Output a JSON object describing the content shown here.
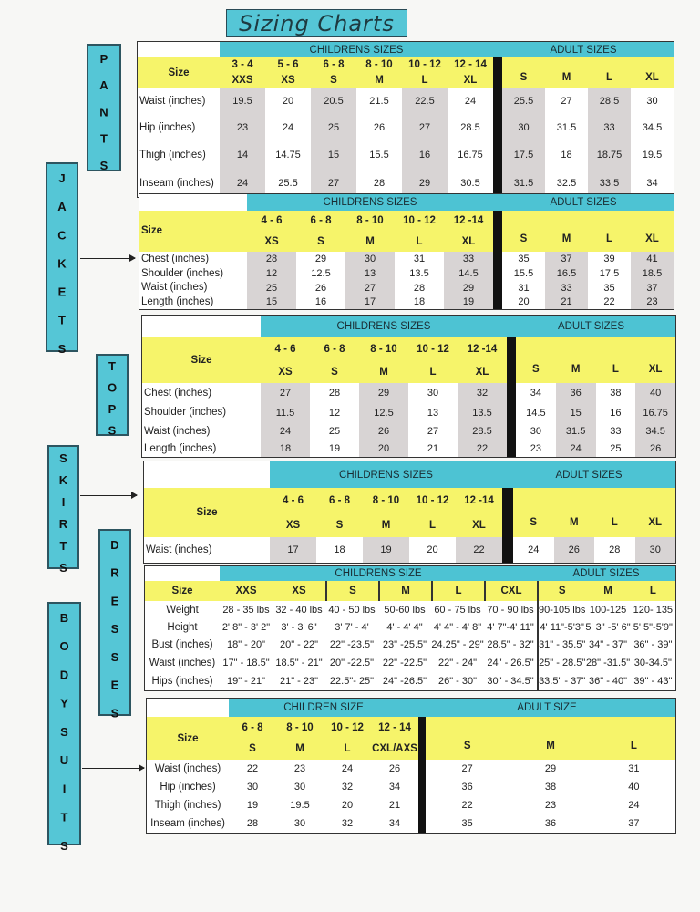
{
  "title": "Sizing Charts",
  "colors": {
    "teal": "#4dc3d3",
    "yellow": "#f6f46a",
    "shade": "#d8d4d4",
    "divider": "#111111"
  },
  "side_labels": {
    "pants": "PANTS",
    "jackets": "JACKETS",
    "tops": "TOPS",
    "skirts": "SKIRTS",
    "dresses": "DRESSES",
    "bodysuits": "BODYSUITS"
  },
  "tables": [
    {
      "id": "pants",
      "children_header": "CHILDRENS SIZES",
      "adult_header": "ADULT SIZES",
      "size_label": "Size",
      "child_cols": [
        {
          "range": "3 - 4",
          "size": "XXS"
        },
        {
          "range": "5 - 6",
          "size": "XS"
        },
        {
          "range": "6 - 8",
          "size": "S"
        },
        {
          "range": "8 - 10",
          "size": "M"
        },
        {
          "range": "10 - 12",
          "size": "L"
        },
        {
          "range": "12 - 14",
          "size": "XL"
        }
      ],
      "adult_cols": [
        {
          "size": "S"
        },
        {
          "size": "M"
        },
        {
          "size": "L"
        },
        {
          "size": "XL"
        }
      ],
      "rows": [
        {
          "label": "Waist (inches)",
          "child": [
            "19.5",
            "20",
            "20.5",
            "21.5",
            "22.5",
            "24"
          ],
          "adult": [
            "25.5",
            "27",
            "28.5",
            "30"
          ]
        },
        {
          "label": "Hip (inches)",
          "child": [
            "23",
            "24",
            "25",
            "26",
            "27",
            "28.5"
          ],
          "adult": [
            "30",
            "31.5",
            "33",
            "34.5"
          ]
        },
        {
          "label": "Thigh (inches)",
          "child": [
            "14",
            "14.75",
            "15",
            "15.5",
            "16",
            "16.75"
          ],
          "adult": [
            "17.5",
            "18",
            "18.75",
            "19.5"
          ]
        },
        {
          "label": "Inseam (inches)",
          "child": [
            "24",
            "25.5",
            "27",
            "28",
            "29",
            "30.5"
          ],
          "adult": [
            "31.5",
            "32.5",
            "33.5",
            "34"
          ]
        }
      ]
    },
    {
      "id": "jackets",
      "children_header": "CHILDRENS SIZES",
      "adult_header": "ADULT SIZES",
      "size_label": "Size",
      "child_cols": [
        {
          "range": "4 - 6",
          "size": "XS"
        },
        {
          "range": "6 - 8",
          "size": "S"
        },
        {
          "range": "8 - 10",
          "size": "M"
        },
        {
          "range": "10 - 12",
          "size": "L"
        },
        {
          "range": "12 -14",
          "size": "XL"
        }
      ],
      "adult_cols": [
        {
          "size": "S"
        },
        {
          "size": "M"
        },
        {
          "size": "L"
        },
        {
          "size": "XL"
        }
      ],
      "rows": [
        {
          "label": "Chest (inches)",
          "child": [
            "28",
            "29",
            "30",
            "31",
            "33"
          ],
          "adult": [
            "35",
            "37",
            "39",
            "41"
          ]
        },
        {
          "label": "Shoulder (inches)",
          "child": [
            "12",
            "12.5",
            "13",
            "13.5",
            "14.5"
          ],
          "adult": [
            "15.5",
            "16.5",
            "17.5",
            "18.5"
          ]
        },
        {
          "label": "Waist (inches)",
          "child": [
            "25",
            "26",
            "27",
            "28",
            "29"
          ],
          "adult": [
            "31",
            "33",
            "35",
            "37"
          ]
        },
        {
          "label": "Length (inches)",
          "child": [
            "15",
            "16",
            "17",
            "18",
            "19"
          ],
          "adult": [
            "20",
            "21",
            "22",
            "23"
          ]
        }
      ]
    },
    {
      "id": "tops",
      "children_header": "CHILDRENS SIZES",
      "adult_header": "ADULT SIZES",
      "size_label": "Size",
      "child_cols": [
        {
          "range": "4 - 6",
          "size": "XS"
        },
        {
          "range": "6 - 8",
          "size": "S"
        },
        {
          "range": "8 - 10",
          "size": "M"
        },
        {
          "range": "10 - 12",
          "size": "L"
        },
        {
          "range": "12 -14",
          "size": "XL"
        }
      ],
      "adult_cols": [
        {
          "size": "S"
        },
        {
          "size": "M"
        },
        {
          "size": "L"
        },
        {
          "size": "XL"
        }
      ],
      "rows": [
        {
          "label": "Chest (inches)",
          "child": [
            "27",
            "28",
            "29",
            "30",
            "32"
          ],
          "adult": [
            "34",
            "36",
            "38",
            "40"
          ]
        },
        {
          "label": "Shoulder (inches)",
          "child": [
            "11.5",
            "12",
            "12.5",
            "13",
            "13.5"
          ],
          "adult": [
            "14.5",
            "15",
            "16",
            "16.75"
          ]
        },
        {
          "label": "Waist (inches)",
          "child": [
            "24",
            "25",
            "26",
            "27",
            "28.5"
          ],
          "adult": [
            "30",
            "31.5",
            "33",
            "34.5"
          ]
        },
        {
          "label": "Length (inches)",
          "child": [
            "18",
            "19",
            "20",
            "21",
            "22"
          ],
          "adult": [
            "23",
            "24",
            "25",
            "26"
          ]
        }
      ]
    },
    {
      "id": "skirts",
      "children_header": "CHILDRENS SIZES",
      "adult_header": "ADULT SIZES",
      "size_label": "Size",
      "child_cols": [
        {
          "range": "4 - 6",
          "size": "XS"
        },
        {
          "range": "6 - 8",
          "size": "S"
        },
        {
          "range": "8 - 10",
          "size": "M"
        },
        {
          "range": "10 - 12",
          "size": "L"
        },
        {
          "range": "12 -14",
          "size": "XL"
        }
      ],
      "adult_cols": [
        {
          "size": "S"
        },
        {
          "size": "M"
        },
        {
          "size": "L"
        },
        {
          "size": "XL"
        }
      ],
      "rows": [
        {
          "label": "Waist (inches)",
          "child": [
            "17",
            "18",
            "19",
            "20",
            "22"
          ],
          "adult": [
            "24",
            "26",
            "28",
            "30"
          ]
        }
      ]
    },
    {
      "id": "dresses",
      "children_header": "CHILDRENS SIZE",
      "adult_header": "ADULT SIZES",
      "size_label": "Size",
      "child_cols": [
        {
          "size": "XXS"
        },
        {
          "size": "XS"
        },
        {
          "size": "S"
        },
        {
          "size": "M"
        },
        {
          "size": "L"
        },
        {
          "size": "CXL"
        }
      ],
      "adult_cols": [
        {
          "size": "S"
        },
        {
          "size": "M"
        },
        {
          "size": "L"
        }
      ],
      "rows": [
        {
          "label": "Weight",
          "child": [
            "28 - 35 lbs",
            "32 - 40 lbs",
            "40 - 50 lbs",
            "50-60 lbs",
            "60 - 75 lbs",
            "70 - 90 lbs"
          ],
          "adult": [
            "90-105 lbs",
            "100-125",
            "120- 135"
          ]
        },
        {
          "label": "Height",
          "child": [
            "2' 8\" - 3' 2\"",
            "3' - 3' 6\"",
            "3' 7' - 4'",
            "4' - 4' 4\"",
            "4' 4\" - 4' 8\"",
            "4' 7\"-4' 11\""
          ],
          "adult": [
            "4' 11\"-5'3\"",
            "5' 3\" -5' 6\"",
            "5' 5\"-5'9\""
          ]
        },
        {
          "label": "Bust (inches)",
          "child": [
            "18\" - 20\"",
            "20\" - 22\"",
            "22\" -23.5\"",
            "23\" -25.5\"",
            "24.25\" - 29\"",
            "28.5\" - 32\""
          ],
          "adult": [
            "31\" - 35.5\"",
            "34\" - 37\"",
            "36\" - 39\""
          ]
        },
        {
          "label": "Waist (inches)",
          "child": [
            "17\" - 18.5\"",
            "18.5\" - 21\"",
            "20\" -22.5\"",
            "22\" -22.5\"",
            "22\" - 24\"",
            "24\" - 26.5\""
          ],
          "adult": [
            "25\" - 28.5\"",
            "28\" -31.5\"",
            "30-34.5\""
          ]
        },
        {
          "label": "Hips  (inches)",
          "child": [
            "19\" - 21\"",
            "21\" - 23\"",
            "22.5\"- 25\"",
            "24\" -26.5\"",
            "26\" - 30\"",
            "30\" - 34.5\""
          ],
          "adult": [
            "33.5\" - 37\"",
            "36\" - 40\"",
            "39\" - 43\""
          ]
        }
      ]
    },
    {
      "id": "bodysuits",
      "children_header": "CHILDREN SIZE",
      "adult_header": "ADULT SIZE",
      "size_label": "Size",
      "child_cols": [
        {
          "range": "6 - 8",
          "size": "S"
        },
        {
          "range": "8 - 10",
          "size": "M"
        },
        {
          "range": "10 - 12",
          "size": "L"
        },
        {
          "range": "12 - 14",
          "size": "CXL/AXS"
        }
      ],
      "adult_cols": [
        {
          "size": "S"
        },
        {
          "size": "M"
        },
        {
          "size": "L"
        }
      ],
      "rows": [
        {
          "label": "Waist (inches)",
          "child": [
            "22",
            "23",
            "24",
            "26"
          ],
          "adult": [
            "27",
            "29",
            "31"
          ]
        },
        {
          "label": "Hip (inches)",
          "child": [
            "30",
            "30",
            "32",
            "34"
          ],
          "adult": [
            "36",
            "38",
            "40"
          ]
        },
        {
          "label": "Thigh (inches)",
          "child": [
            "19",
            "19.5",
            "20",
            "21"
          ],
          "adult": [
            "22",
            "23",
            "24"
          ]
        },
        {
          "label": "Inseam (inches)",
          "child": [
            "28",
            "30",
            "32",
            "34"
          ],
          "adult": [
            "35",
            "36",
            "37"
          ]
        }
      ]
    }
  ]
}
